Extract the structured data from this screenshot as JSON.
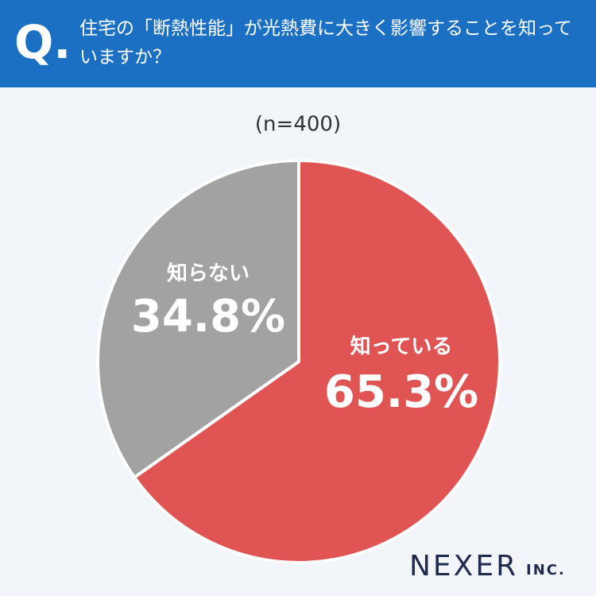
{
  "header": {
    "marker": "Q.",
    "question": "住宅の「断熱性能」が光熱費に大きく影響することを知っていますか？"
  },
  "chart_data": {
    "type": "pie",
    "subtitle": "(n=400)",
    "categories": [
      "知っている",
      "知らない"
    ],
    "values": [
      65.3,
      34.8
    ],
    "value_labels": [
      "65.3%",
      "34.8%"
    ],
    "colors": [
      "#e05454",
      "#a2a2a2"
    ]
  },
  "logo": {
    "name": "NEXER",
    "suffix": "INC."
  }
}
